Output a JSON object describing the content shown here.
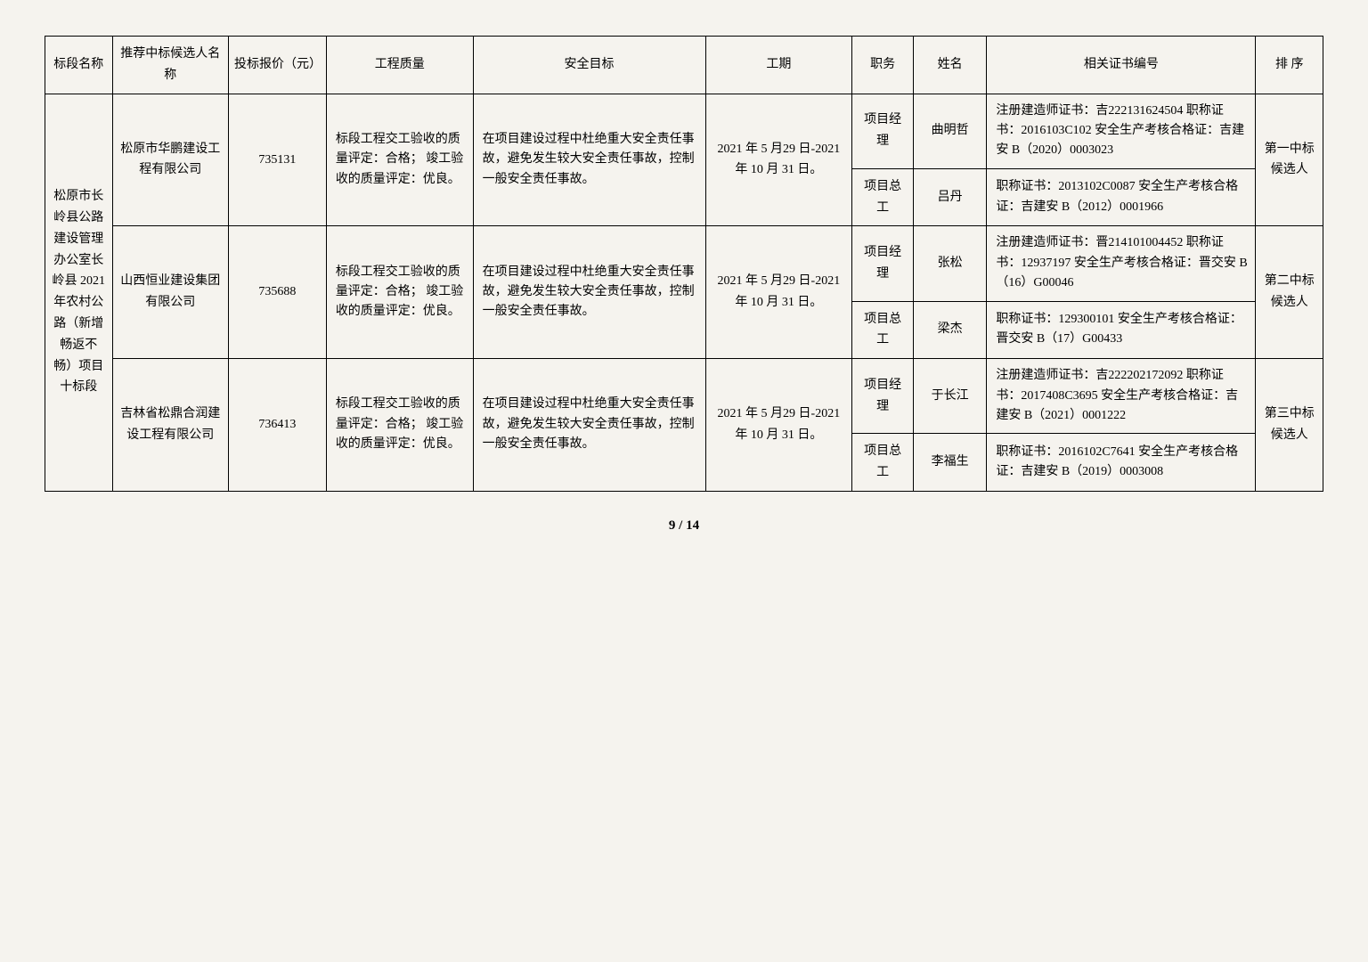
{
  "headers": {
    "section": "标段名称",
    "candidate": "推荐中标候选人名称",
    "price": "投标报价（元）",
    "quality": "工程质量",
    "safety": "安全目标",
    "period": "工期",
    "role": "职务",
    "name": "姓名",
    "cert": "相关证书编号",
    "rank": "排 序"
  },
  "section_name": "松原市长岭县公路建设管理办公室长岭县 2021 年农村公路（新增畅返不畅）项目十标段",
  "candidates": [
    {
      "company": "松原市华鹏建设工程有限公司",
      "price": "735131",
      "quality": "标段工程交工验收的质量评定：合格；\n竣工验收的质量评定：优良。",
      "safety": "在项目建设过程中杜绝重大安全责任事故，避免发生较大安全责任事故，控制一般安全责任事故。",
      "period": "2021 年 5 月29 日-2021 年 10 月 31 日。",
      "rank": "第一中标候选人",
      "personnel": [
        {
          "role": "项目经理",
          "name": "曲明哲",
          "cert": "注册建造师证书：吉222131624504\n职称证书：2016103C102\n安全生产考核合格证：吉建安 B（2020）0003023"
        },
        {
          "role": "项目总工",
          "name": "吕丹",
          "cert": "职称证书：2013102C0087\n安全生产考核合格证：吉建安 B（2012）0001966"
        }
      ]
    },
    {
      "company": "山西恒业建设集团有限公司",
      "price": "735688",
      "quality": "标段工程交工验收的质量评定：合格；\n竣工验收的质量评定：优良。",
      "safety": "在项目建设过程中杜绝重大安全责任事故，避免发生较大安全责任事故，控制一般安全责任事故。",
      "period": "2021 年 5 月29 日-2021 年 10 月 31 日。",
      "rank": "第二中标候选人",
      "personnel": [
        {
          "role": "项目经理",
          "name": "张松",
          "cert": "注册建造师证书：晋214101004452\n职称证书：12937197\n安全生产考核合格证：晋交安 B（16）G00046"
        },
        {
          "role": "项目总工",
          "name": "梁杰",
          "cert": "职称证书：129300101\n安全生产考核合格证：晋交安 B（17）G00433"
        }
      ]
    },
    {
      "company": "吉林省松鼎合润建设工程有限公司",
      "price": "736413",
      "quality": "标段工程交工验收的质量评定：合格；\n竣工验收的质量评定：优良。",
      "safety": "在项目建设过程中杜绝重大安全责任事故，避免发生较大安全责任事故，控制一般安全责任事故。",
      "period": "2021 年 5 月29 日-2021 年 10 月 31 日。",
      "rank": "第三中标候选人",
      "personnel": [
        {
          "role": "项目经理",
          "name": "于长江",
          "cert": "注册建造师证书：吉222202172092\n职称证书：2017408C3695\n安全生产考核合格证：吉建安 B（2021）0001222"
        },
        {
          "role": "项目总工",
          "name": "李福生",
          "cert": "职称证书：2016102C7641\n安全生产考核合格证：吉建安 B（2019）0003008"
        }
      ]
    }
  ],
  "page_number": "9 / 14"
}
